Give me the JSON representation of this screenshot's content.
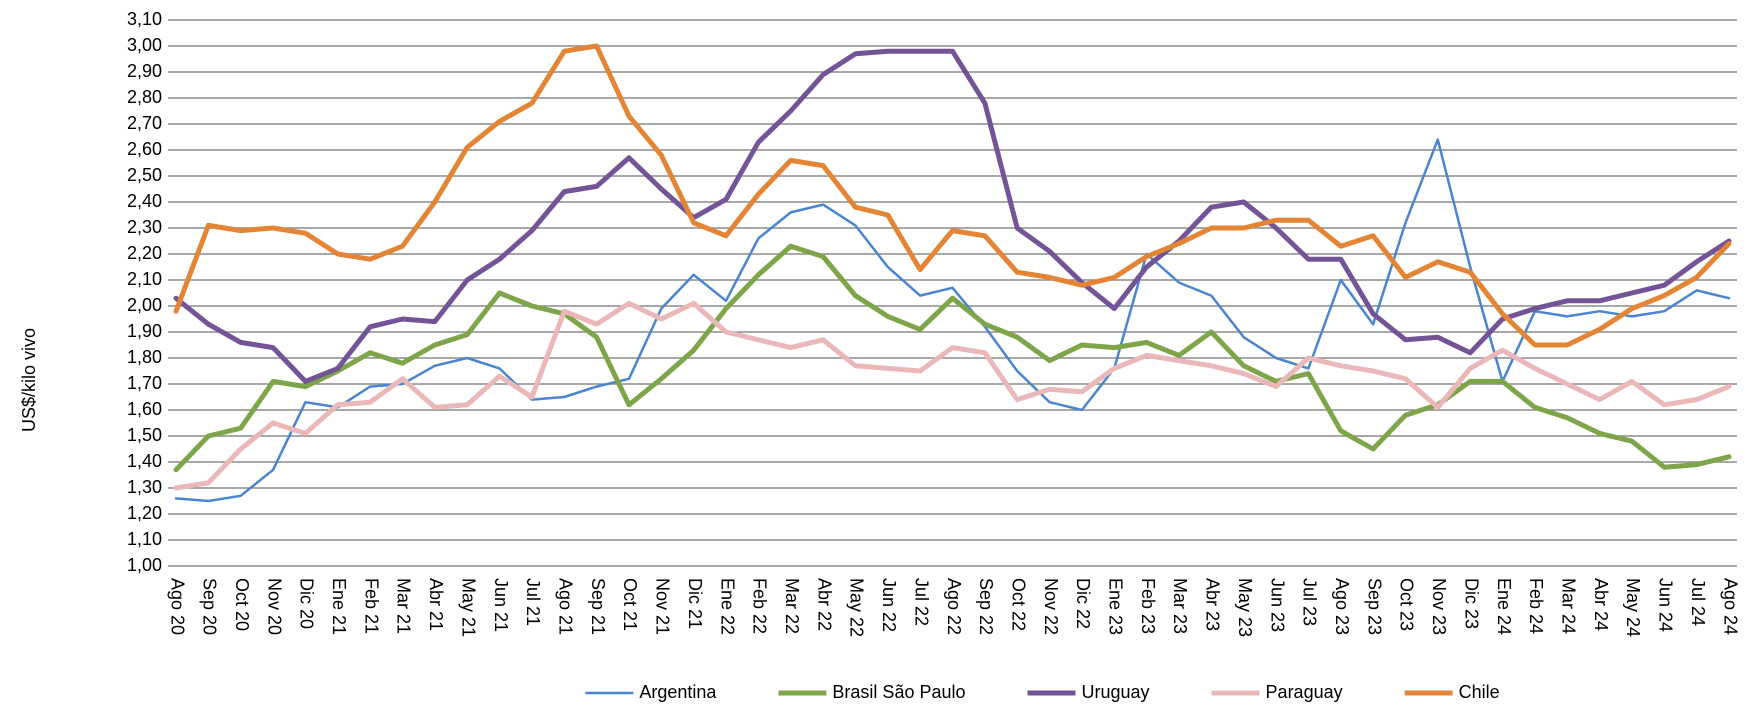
{
  "chart_data": {
    "type": "line",
    "y_label": "US$/kilo vivo",
    "categories": [
      "Ago 20",
      "Sep 20",
      "Oct 20",
      "Nov 20",
      "Dic 20",
      "Ene 21",
      "Feb 21",
      "Mar 21",
      "Abr 21",
      "May 21",
      "Jun 21",
      "Jul 21",
      "Ago 21",
      "Sep 21",
      "Oct 21",
      "Nov 21",
      "Dic 21",
      "Ene 22",
      "Feb 22",
      "Mar 22",
      "Abr 22",
      "May 22",
      "Jun 22",
      "Jul 22",
      "Ago 22",
      "Sep 22",
      "Oct 22",
      "Nov 22",
      "Dic 22",
      "Ene 23",
      "Feb 23",
      "Mar 23",
      "Abr 23",
      "May 23",
      "Jun 23",
      "Jul 23",
      "Ago 23",
      "Sep 23",
      "Oct 23",
      "Nov 23",
      "Dic 23",
      "Ene 24",
      "Feb 24",
      "Mar 24",
      "Abr 24",
      "May 24",
      "Jun 24",
      "Jul 24",
      "Ago 24"
    ],
    "series": [
      {
        "name": "Argentina",
        "color": "#4a86cf",
        "values": [
          1.26,
          1.25,
          1.27,
          1.37,
          1.63,
          1.61,
          1.69,
          1.7,
          1.77,
          1.8,
          1.76,
          1.64,
          1.65,
          1.69,
          1.72,
          1.99,
          2.12,
          2.02,
          2.26,
          2.36,
          2.39,
          2.31,
          2.15,
          2.04,
          2.07,
          1.92,
          1.75,
          1.63,
          1.6,
          1.76,
          2.2,
          2.09,
          2.04,
          1.88,
          1.8,
          1.76,
          2.1,
          1.93,
          2.32,
          2.64,
          2.15,
          1.71,
          1.98,
          1.96,
          1.98,
          1.96,
          1.98,
          2.06,
          2.03
        ]
      },
      {
        "name": "Brasil São Paulo",
        "color": "#7fa54a",
        "values": [
          1.37,
          1.5,
          1.53,
          1.71,
          1.69,
          1.75,
          1.82,
          1.78,
          1.85,
          1.89,
          2.05,
          2.0,
          1.97,
          1.88,
          1.62,
          1.72,
          1.83,
          1.99,
          2.12,
          2.23,
          2.19,
          2.04,
          1.96,
          1.91,
          2.03,
          1.93,
          1.88,
          1.79,
          1.85,
          1.84,
          1.86,
          1.81,
          1.9,
          1.77,
          1.71,
          1.74,
          1.52,
          1.45,
          1.58,
          1.62,
          1.71,
          1.71,
          1.61,
          1.57,
          1.51,
          1.48,
          1.38,
          1.39,
          1.42
        ]
      },
      {
        "name": "Uruguay",
        "color": "#735497",
        "values": [
          2.03,
          1.93,
          1.86,
          1.84,
          1.71,
          1.76,
          1.92,
          1.95,
          1.94,
          2.1,
          2.18,
          2.29,
          2.44,
          2.46,
          2.57,
          2.45,
          2.34,
          2.41,
          2.63,
          2.75,
          2.89,
          2.97,
          2.98,
          2.98,
          2.98,
          2.78,
          2.3,
          2.21,
          2.09,
          1.99,
          2.15,
          2.25,
          2.38,
          2.4,
          2.3,
          2.18,
          2.18,
          1.97,
          1.87,
          1.88,
          1.82,
          1.95,
          1.99,
          2.02,
          2.02,
          2.05,
          2.08,
          2.17,
          2.25
        ]
      },
      {
        "name": "Paraguay",
        "color": "#eab8b8",
        "values": [
          1.3,
          1.32,
          1.45,
          1.55,
          1.51,
          1.62,
          1.63,
          1.72,
          1.61,
          1.62,
          1.73,
          1.65,
          1.98,
          1.93,
          2.01,
          1.95,
          2.01,
          1.9,
          1.87,
          1.84,
          1.87,
          1.77,
          1.76,
          1.75,
          1.84,
          1.82,
          1.64,
          1.68,
          1.67,
          1.76,
          1.81,
          1.79,
          1.77,
          1.74,
          1.69,
          1.8,
          1.77,
          1.75,
          1.72,
          1.61,
          1.76,
          1.83,
          1.76,
          1.7,
          1.64,
          1.71,
          1.62,
          1.64,
          1.69
        ]
      },
      {
        "name": "Chile",
        "color": "#e38535",
        "values": [
          1.98,
          2.31,
          2.29,
          2.3,
          2.28,
          2.2,
          2.18,
          2.23,
          2.4,
          2.61,
          2.71,
          2.78,
          2.98,
          3.0,
          2.73,
          2.58,
          2.32,
          2.27,
          2.43,
          2.56,
          2.54,
          2.38,
          2.35,
          2.14,
          2.29,
          2.27,
          2.13,
          2.11,
          2.08,
          2.11,
          2.19,
          2.24,
          2.3,
          2.3,
          2.33,
          2.33,
          2.23,
          2.27,
          2.11,
          2.17,
          2.13,
          1.97,
          1.85,
          1.85,
          1.91,
          1.99,
          2.04,
          2.11,
          2.24
        ]
      }
    ],
    "ylim": [
      1.0,
      3.1
    ],
    "yticks": [
      {
        "value": 1.0,
        "label": "1,00"
      },
      {
        "value": 1.1,
        "label": "1,10"
      },
      {
        "value": 1.2,
        "label": "1,20"
      },
      {
        "value": 1.3,
        "label": "1,30"
      },
      {
        "value": 1.4,
        "label": "1,40"
      },
      {
        "value": 1.5,
        "label": "1,50"
      },
      {
        "value": 1.6,
        "label": "1,60"
      },
      {
        "value": 1.7,
        "label": "1,70"
      },
      {
        "value": 1.8,
        "label": "1,80"
      },
      {
        "value": 1.9,
        "label": "1,90"
      },
      {
        "value": 2.0,
        "label": "2,00"
      },
      {
        "value": 2.1,
        "label": "2,10"
      },
      {
        "value": 2.2,
        "label": "2,20"
      },
      {
        "value": 2.3,
        "label": "2,30"
      },
      {
        "value": 2.4,
        "label": "2,40"
      },
      {
        "value": 2.5,
        "label": "2,50"
      },
      {
        "value": 2.6,
        "label": "2,60"
      },
      {
        "value": 2.7,
        "label": "2,70"
      },
      {
        "value": 2.8,
        "label": "2,80"
      },
      {
        "value": 2.9,
        "label": "2,90"
      },
      {
        "value": 3.0,
        "label": "3,00"
      },
      {
        "value": 3.1,
        "label": "3,10"
      }
    ],
    "grid": true,
    "legend": "bottom"
  }
}
